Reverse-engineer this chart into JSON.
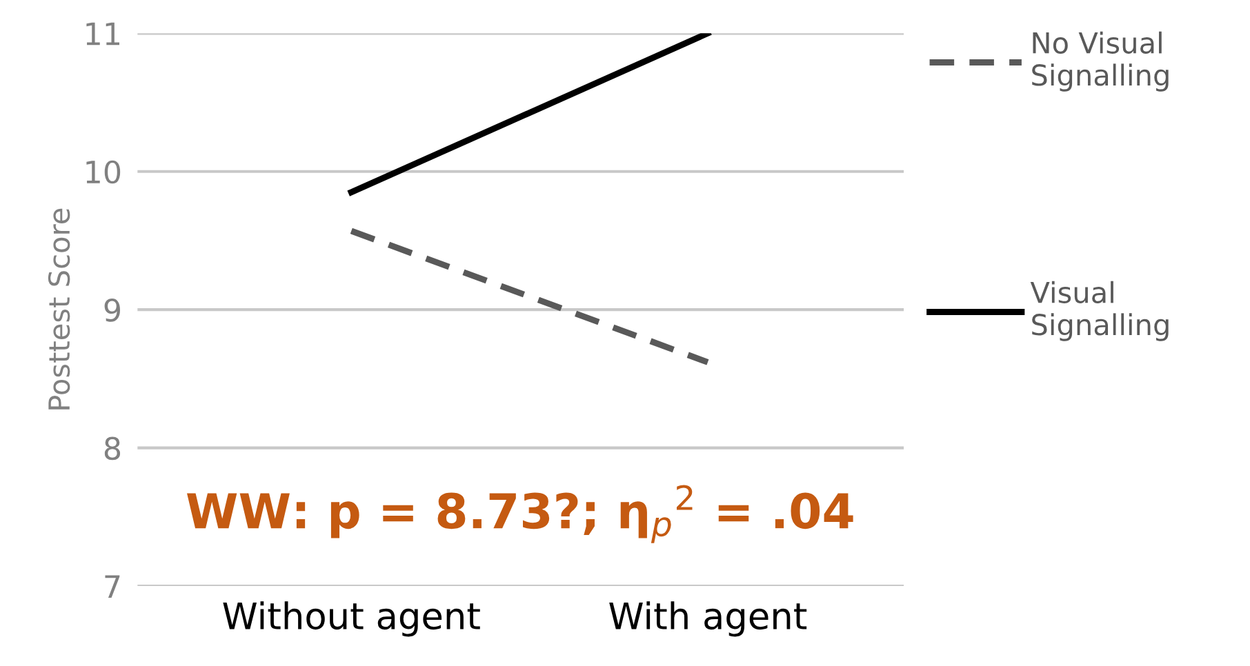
{
  "chart_data": {
    "type": "line",
    "ylabel": "Posttest Score",
    "categories": [
      "Without agent",
      "With agent"
    ],
    "series": [
      {
        "name": "No Visual\nSignalling",
        "color": "#595959",
        "values": [
          9.57,
          8.62
        ],
        "line_style": "dashed"
      },
      {
        "name": "Visual\nSignalling",
        "color": "#000000",
        "values": [
          9.85,
          11.0
        ],
        "line_style": "solid"
      }
    ],
    "ylim": [
      7,
      11
    ],
    "yticks": [
      7,
      8,
      9,
      10,
      11
    ],
    "grid": "y",
    "legend": "right",
    "marker": "none",
    "annotations": [
      "WW: p = 8.73?; η$_{p}$$^{2}$ = .04"
    ]
  }
}
